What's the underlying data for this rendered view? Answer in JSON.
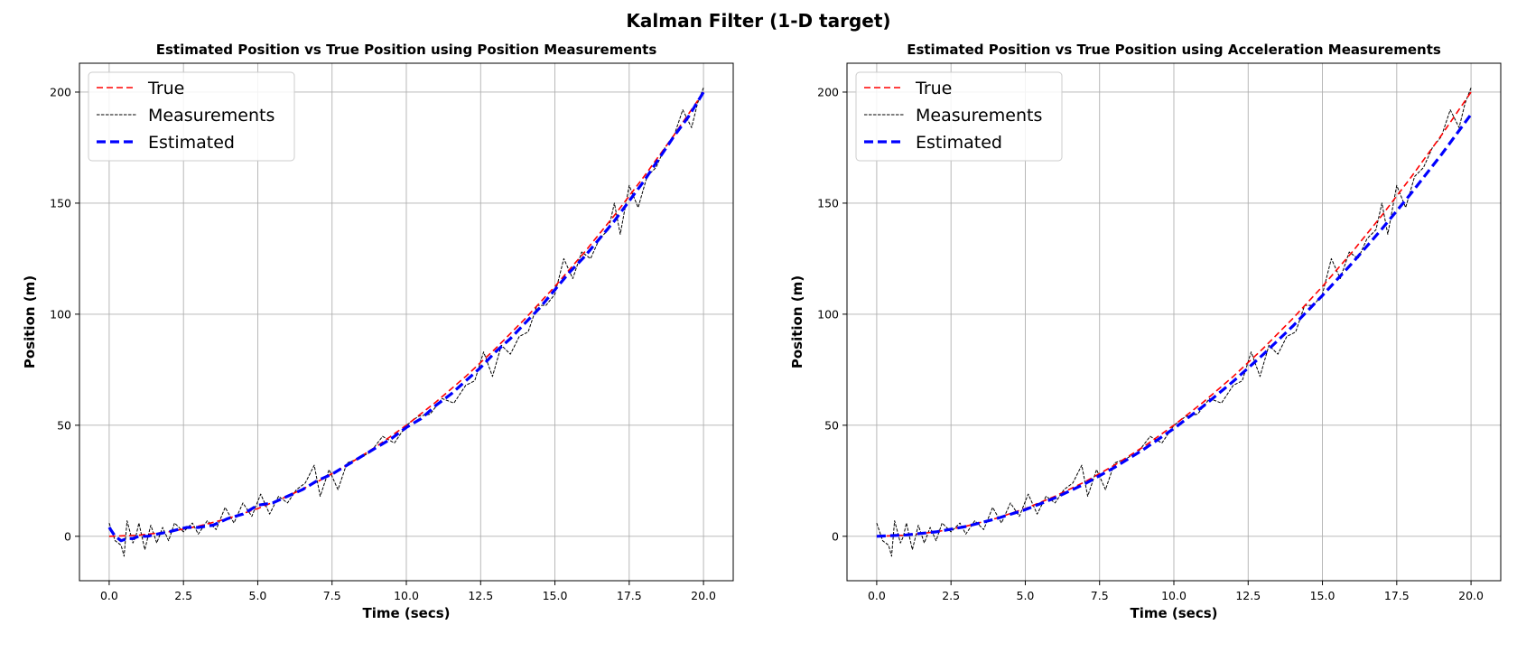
{
  "figure": {
    "title": "Kalman Filter (1-D target)"
  },
  "colors": {
    "true": "#ff0000",
    "measurements": "#000000",
    "estimated": "#0000ff",
    "grid": "#b0b0b0"
  },
  "chart_data": [
    {
      "type": "line",
      "title": "Estimated Position vs True Position using Position Measurements",
      "xlabel": "Time (secs)",
      "ylabel": "Position (m)",
      "xlim": [
        -1.0,
        21.0
      ],
      "ylim": [
        -20,
        213
      ],
      "xticks": [
        0.0,
        2.5,
        5.0,
        7.5,
        10.0,
        12.5,
        15.0,
        17.5,
        20.0
      ],
      "xtick_labels": [
        "0.0",
        "2.5",
        "5.0",
        "7.5",
        "10.0",
        "12.5",
        "15.0",
        "17.5",
        "20.0"
      ],
      "yticks": [
        0,
        50,
        100,
        150,
        200
      ],
      "ytick_labels": [
        "0",
        "50",
        "100",
        "150",
        "200"
      ],
      "grid": true,
      "legend_position": "upper-left",
      "series": [
        {
          "name": "True",
          "style": "dashed",
          "x": [
            0,
            1,
            2,
            3,
            4,
            5,
            6,
            7,
            8,
            9,
            10,
            11,
            12,
            13,
            14,
            15,
            16,
            17,
            18,
            19,
            20
          ],
          "y": [
            0,
            0.5,
            2,
            4.5,
            8,
            12.5,
            18,
            24.5,
            32,
            40.5,
            50,
            60.5,
            72,
            84.5,
            98,
            112.5,
            128,
            144.5,
            162,
            180.5,
            200
          ]
        },
        {
          "name": "Measurements",
          "style": "dashed-thin",
          "x": [
            0,
            0.2,
            0.4,
            0.5,
            0.6,
            0.8,
            0.9,
            1.0,
            1.2,
            1.4,
            1.6,
            1.8,
            2.0,
            2.2,
            2.5,
            2.8,
            3.0,
            3.3,
            3.6,
            3.9,
            4.2,
            4.5,
            4.8,
            5.1,
            5.4,
            5.7,
            6.0,
            6.3,
            6.6,
            6.9,
            7.1,
            7.4,
            7.7,
            8.0,
            8.4,
            8.8,
            9.2,
            9.6,
            10.0,
            10.4,
            10.8,
            11.2,
            11.6,
            12.0,
            12.3,
            12.6,
            12.9,
            13.2,
            13.5,
            13.8,
            14.1,
            14.4,
            14.7,
            15.0,
            15.3,
            15.6,
            15.9,
            16.2,
            16.5,
            16.8,
            17.0,
            17.2,
            17.5,
            17.8,
            18.1,
            18.4,
            18.7,
            19.0,
            19.3,
            19.6,
            19.8,
            20.0
          ],
          "y": [
            6,
            -2,
            -4,
            -9,
            7,
            -3,
            0,
            6,
            -6,
            5,
            -3,
            4,
            -2,
            6,
            2,
            6,
            1,
            7,
            3,
            13,
            6,
            15,
            9,
            19,
            10,
            18,
            15,
            21,
            24,
            32,
            18,
            30,
            21,
            33,
            35,
            38,
            45,
            42,
            50,
            54,
            55,
            62,
            60,
            68,
            70,
            83,
            72,
            86,
            82,
            90,
            92,
            104,
            104,
            109,
            125,
            116,
            128,
            125,
            134,
            138,
            150,
            136,
            158,
            148,
            162,
            166,
            175,
            180,
            192,
            184,
            195,
            202
          ]
        },
        {
          "name": "Estimated",
          "style": "dashed-thick",
          "x": [
            0,
            0.2,
            0.4,
            0.6,
            0.8,
            1.0,
            1.3,
            1.6,
            2.0,
            2.3,
            2.6,
            3.0,
            3.5,
            4.0,
            4.5,
            5.0,
            5.5,
            6.0,
            6.5,
            7.0,
            7.5,
            8.0,
            8.5,
            9.0,
            9.5,
            10.0,
            10.5,
            11.0,
            11.5,
            12.0,
            12.5,
            13.0,
            13.5,
            14.0,
            14.5,
            15.0,
            15.5,
            16.0,
            16.5,
            17.0,
            17.5,
            18.0,
            18.5,
            19.0,
            19.5,
            20.0
          ],
          "y": [
            4,
            0,
            -2,
            -1,
            -1,
            0,
            0,
            1,
            2,
            3,
            4,
            4,
            5,
            8,
            10,
            14,
            15,
            18,
            21,
            25,
            28,
            32,
            36,
            40,
            44,
            49,
            53,
            59,
            64,
            70,
            76,
            83,
            89,
            96,
            103,
            111,
            119,
            126,
            134,
            142,
            151,
            160,
            170,
            180,
            189,
            200
          ]
        }
      ]
    },
    {
      "type": "line",
      "title": "Estimated Position vs True Position using Acceleration Measurements",
      "xlabel": "Time (secs)",
      "ylabel": "Position (m)",
      "xlim": [
        -1.0,
        21.0
      ],
      "ylim": [
        -20,
        213
      ],
      "xticks": [
        0.0,
        2.5,
        5.0,
        7.5,
        10.0,
        12.5,
        15.0,
        17.5,
        20.0
      ],
      "xtick_labels": [
        "0.0",
        "2.5",
        "5.0",
        "7.5",
        "10.0",
        "12.5",
        "15.0",
        "17.5",
        "20.0"
      ],
      "yticks": [
        0,
        50,
        100,
        150,
        200
      ],
      "ytick_labels": [
        "0",
        "50",
        "100",
        "150",
        "200"
      ],
      "grid": true,
      "legend_position": "upper-left",
      "series": [
        {
          "name": "True",
          "style": "dashed",
          "x": [
            0,
            1,
            2,
            3,
            4,
            5,
            6,
            7,
            8,
            9,
            10,
            11,
            12,
            13,
            14,
            15,
            16,
            17,
            18,
            19,
            20
          ],
          "y": [
            0,
            0.5,
            2,
            4.5,
            8,
            12.5,
            18,
            24.5,
            32,
            40.5,
            50,
            60.5,
            72,
            84.5,
            98,
            112.5,
            128,
            144.5,
            162,
            180.5,
            200
          ]
        },
        {
          "name": "Measurements",
          "style": "dashed-thin",
          "x": [
            0,
            0.2,
            0.4,
            0.5,
            0.6,
            0.8,
            0.9,
            1.0,
            1.2,
            1.4,
            1.6,
            1.8,
            2.0,
            2.2,
            2.5,
            2.8,
            3.0,
            3.3,
            3.6,
            3.9,
            4.2,
            4.5,
            4.8,
            5.1,
            5.4,
            5.7,
            6.0,
            6.3,
            6.6,
            6.9,
            7.1,
            7.4,
            7.7,
            8.0,
            8.4,
            8.8,
            9.2,
            9.6,
            10.0,
            10.4,
            10.8,
            11.2,
            11.6,
            12.0,
            12.3,
            12.6,
            12.9,
            13.2,
            13.5,
            13.8,
            14.1,
            14.4,
            14.7,
            15.0,
            15.3,
            15.6,
            15.9,
            16.2,
            16.5,
            16.8,
            17.0,
            17.2,
            17.5,
            17.8,
            18.1,
            18.4,
            18.7,
            19.0,
            19.3,
            19.6,
            19.8,
            20.0
          ],
          "y": [
            6,
            -2,
            -4,
            -9,
            7,
            -3,
            0,
            6,
            -6,
            5,
            -3,
            4,
            -2,
            6,
            2,
            6,
            1,
            7,
            3,
            13,
            6,
            15,
            9,
            19,
            10,
            18,
            15,
            21,
            24,
            32,
            18,
            30,
            21,
            33,
            35,
            38,
            45,
            42,
            50,
            54,
            55,
            62,
            60,
            68,
            70,
            83,
            72,
            86,
            82,
            90,
            92,
            104,
            104,
            109,
            125,
            116,
            128,
            125,
            134,
            138,
            150,
            136,
            158,
            148,
            162,
            166,
            175,
            180,
            192,
            184,
            195,
            202
          ]
        },
        {
          "name": "Estimated",
          "style": "dashed-thick",
          "x": [
            0,
            1,
            2,
            3,
            4,
            5,
            6,
            7,
            8,
            9,
            10,
            11,
            12,
            13,
            14,
            15,
            16,
            17,
            18,
            19,
            20
          ],
          "y": [
            0,
            0.6,
            2,
            4.4,
            7.8,
            12,
            17.3,
            23.6,
            31,
            39.3,
            48.5,
            58.7,
            69.8,
            81.8,
            94.6,
            108.4,
            123,
            138.4,
            154.7,
            171.8,
            190
          ]
        }
      ]
    }
  ]
}
